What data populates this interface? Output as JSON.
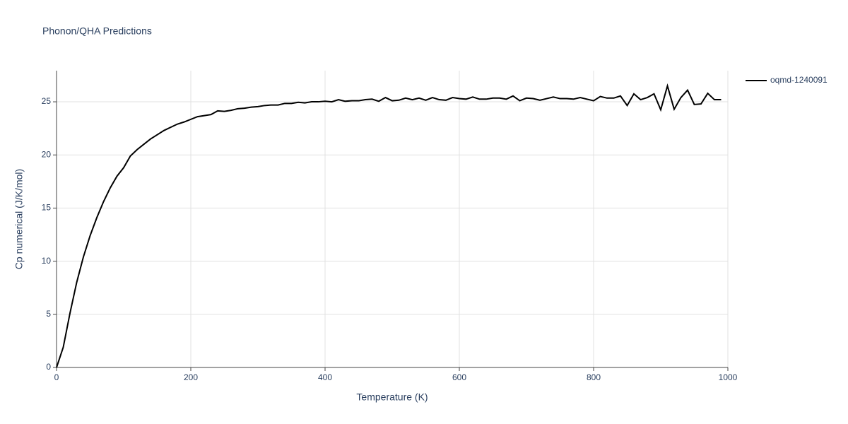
{
  "chart_data": {
    "type": "line",
    "title": "Phonon/QHA Predictions",
    "x_label": "Temperature (K)",
    "y_label": "Cp numerical (J/K/mol)",
    "x": [
      0,
      10,
      20,
      30,
      40,
      50,
      60,
      70,
      80,
      90,
      100,
      110,
      120,
      130,
      140,
      150,
      160,
      170,
      180,
      190,
      200,
      210,
      220,
      230,
      240,
      250,
      260,
      270,
      280,
      290,
      300,
      310,
      320,
      330,
      340,
      350,
      360,
      370,
      380,
      390,
      400,
      410,
      420,
      430,
      440,
      450,
      460,
      470,
      480,
      490,
      500,
      510,
      520,
      530,
      540,
      550,
      560,
      570,
      580,
      590,
      600,
      610,
      620,
      630,
      640,
      650,
      660,
      670,
      680,
      690,
      700,
      710,
      720,
      730,
      740,
      750,
      760,
      770,
      780,
      790,
      800,
      810,
      820,
      830,
      840,
      850,
      860,
      870,
      880,
      890,
      900,
      910,
      920,
      930,
      940,
      950,
      960,
      970,
      980,
      990
    ],
    "series": [
      {
        "name": "oqmd-1240091",
        "color": "#000000",
        "values": [
          0,
          1.9,
          5.1,
          8.0,
          10.4,
          12.4,
          14.1,
          15.6,
          16.9,
          18.0,
          18.8,
          19.9,
          20.5,
          21.0,
          21.5,
          21.9,
          22.3,
          22.6,
          22.9,
          23.1,
          23.35,
          23.6,
          23.7,
          23.8,
          24.15,
          24.1,
          24.2,
          24.35,
          24.4,
          24.5,
          24.55,
          24.65,
          24.7,
          24.7,
          24.85,
          24.85,
          24.95,
          24.9,
          25.0,
          25.0,
          25.05,
          25.0,
          25.2,
          25.05,
          25.1,
          25.1,
          25.2,
          25.25,
          25.05,
          25.4,
          25.1,
          25.15,
          25.35,
          25.2,
          25.35,
          25.15,
          25.4,
          25.2,
          25.15,
          25.4,
          25.3,
          25.25,
          25.45,
          25.25,
          25.25,
          25.35,
          25.35,
          25.25,
          25.55,
          25.1,
          25.35,
          25.3,
          25.15,
          25.3,
          25.45,
          25.3,
          25.3,
          25.25,
          25.4,
          25.25,
          25.1,
          25.5,
          25.35,
          25.35,
          25.55,
          24.65,
          25.75,
          25.2,
          25.4,
          25.75,
          24.25,
          26.5,
          24.3,
          25.4,
          26.1,
          24.75,
          24.8,
          25.8,
          25.2,
          25.2
        ]
      }
    ],
    "xlim": [
      0,
      1000
    ],
    "xticks": [
      0,
      200,
      400,
      600,
      800,
      1000
    ],
    "ylim": [
      0,
      27.93
    ],
    "yticks": [
      0,
      5,
      10,
      15,
      20,
      25
    ],
    "grid": true,
    "legend": "right"
  }
}
